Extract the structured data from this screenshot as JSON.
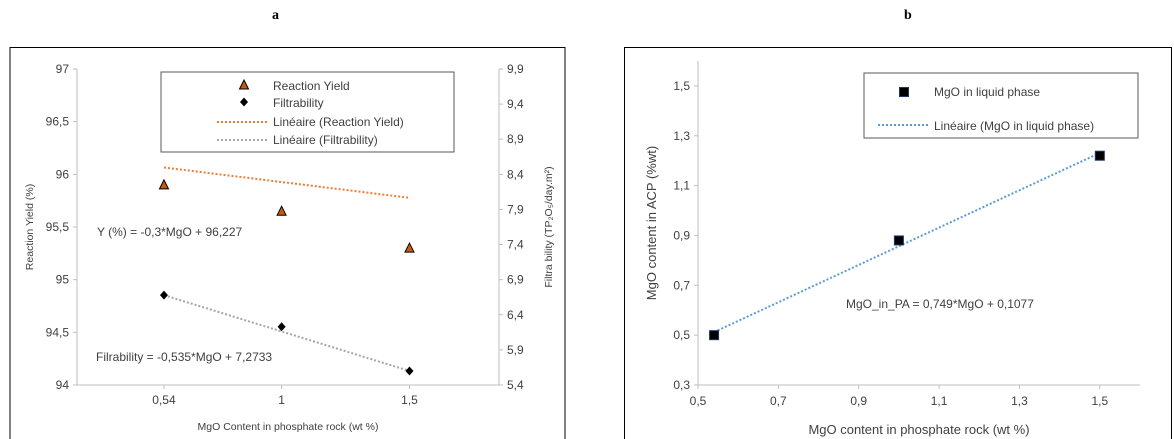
{
  "panels": {
    "a_label": "a",
    "b_label": "b"
  },
  "colors": {
    "orange": "#ed7d31",
    "gray": "#a5a5a5",
    "blue": "#5b9bd5",
    "axis": "#bfbfbf",
    "text": "#404040"
  },
  "chart_data": [
    {
      "type": "scatter",
      "xlabel": "MgO Content in phosphate rock (wt %)",
      "ylabel": "Reaction Yield (%)",
      "y2label": "Filtra bility (TP₂O₅/day.m²)",
      "xticks": [
        "0,54",
        "1",
        "1,5"
      ],
      "yticks": [
        "94",
        "94,5",
        "95",
        "95,5",
        "96",
        "96,5",
        "97"
      ],
      "y2ticks": [
        "5,4",
        "5,9",
        "6,4",
        "6,9",
        "7,4",
        "7,9",
        "8,4",
        "8,9",
        "9,4",
        "9,9"
      ],
      "xlim": [
        0.2,
        1.85
      ],
      "ylim": [
        94,
        97
      ],
      "y2lim": [
        5.4,
        9.9
      ],
      "grid": false,
      "legend_position": "top-right",
      "legend": [
        "Reaction Yield",
        "Filtrability",
        "Linéaire (Reaction Yield)",
        "Linéaire (Filtrability)"
      ],
      "series": [
        {
          "name": "Reaction Yield",
          "marker": "triangle",
          "axis": "left",
          "x": [
            0.54,
            1,
            1.5
          ],
          "y": [
            95.9,
            95.65,
            95.3
          ]
        },
        {
          "name": "Filtrability",
          "marker": "diamond",
          "axis": "right",
          "x": [
            0.54,
            1,
            1.5
          ],
          "y": [
            6.68,
            6.23,
            5.6
          ]
        }
      ],
      "annotations": [
        "Y (%) = -0,3*MgO + 96,227",
        "Filrability = -0,535*MgO + 7,2733"
      ]
    },
    {
      "type": "scatter",
      "xlabel": "MgO content in phosphate rock (wt %)",
      "ylabel": "MgO content in ACP (%wt)",
      "xticks": [
        "0,5",
        "0,7",
        "0,9",
        "1,1",
        "1,3",
        "1,5"
      ],
      "yticks": [
        "0,3",
        "0,5",
        "0,7",
        "0,9",
        "1,1",
        "1,3",
        "1,5"
      ],
      "xlim": [
        0.5,
        1.6
      ],
      "ylim": [
        0.3,
        1.6
      ],
      "grid": false,
      "legend_position": "top-right",
      "legend": [
        "MgO in liquid phase",
        "Linéaire (MgO in liquid phase)"
      ],
      "series": [
        {
          "name": "MgO in liquid phase",
          "marker": "square",
          "x": [
            0.54,
            1,
            1.5
          ],
          "y": [
            0.5,
            0.88,
            1.22
          ]
        }
      ],
      "annotations": [
        "MgO_in_PA = 0,749*MgO + 0,1077"
      ]
    }
  ]
}
